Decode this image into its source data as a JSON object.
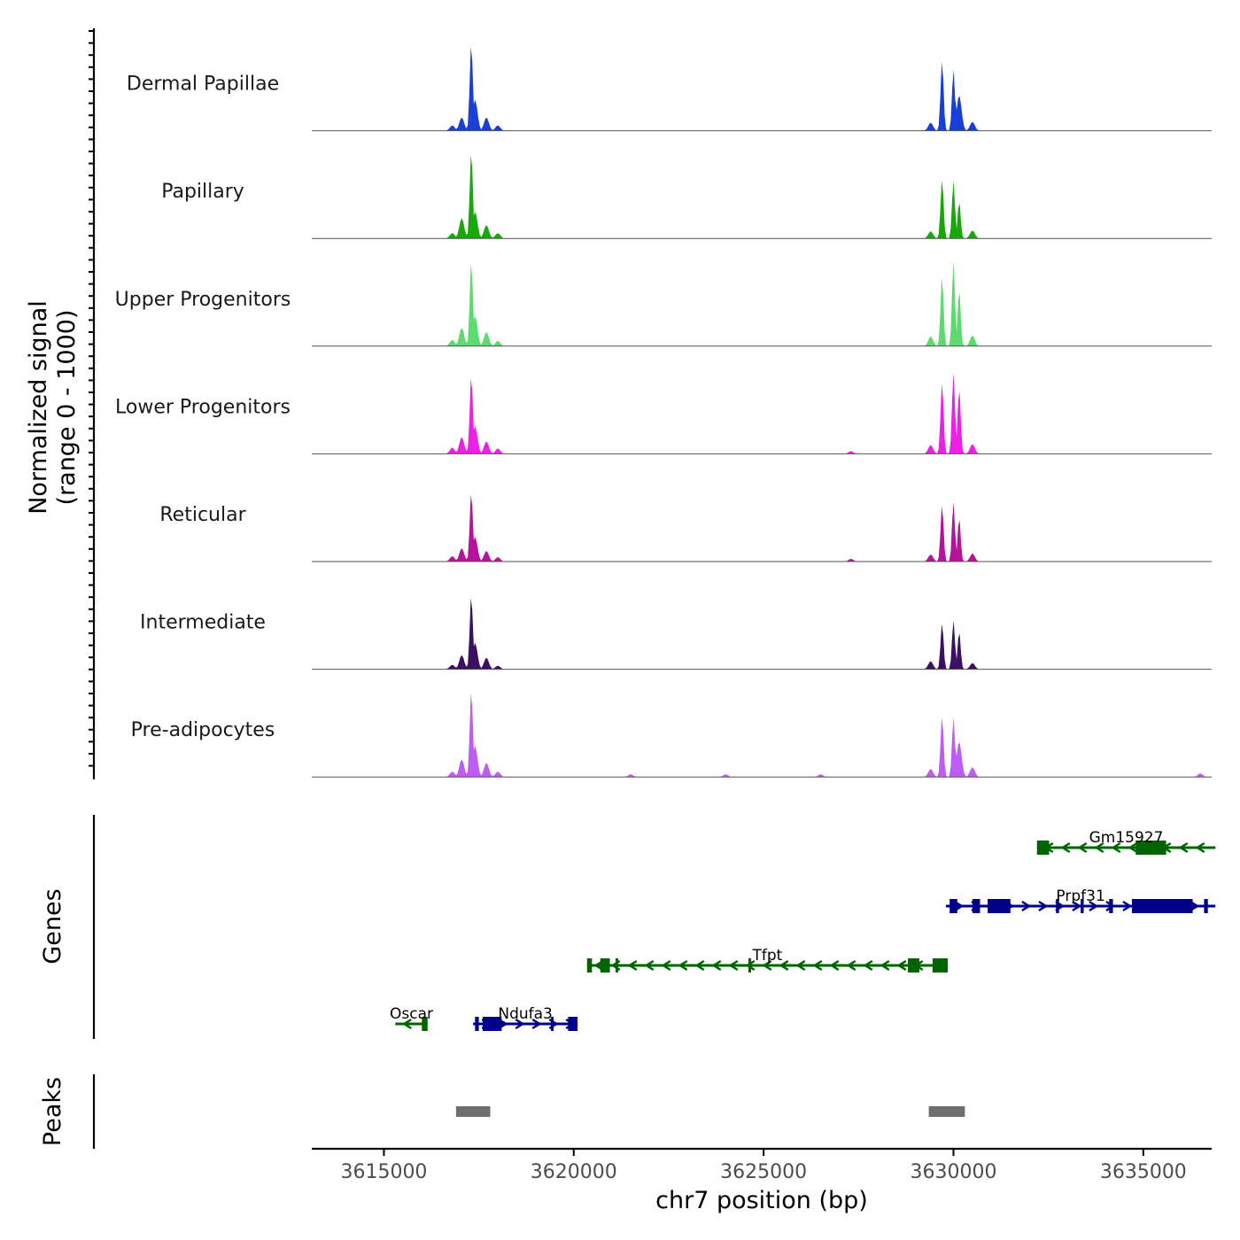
{
  "chart_data": {
    "type": "area",
    "chromosome": "chr7",
    "xlabel": "chr7 position (bp)",
    "xlim": [
      3613100,
      3636800
    ],
    "x_ticks": [
      3615000,
      3620000,
      3625000,
      3630000,
      3635000
    ],
    "x_tick_labels": [
      "3615000",
      "3620000",
      "3625000",
      "3630000",
      "3635000"
    ],
    "coverage": {
      "ylabel_line1": "Normalized signal",
      "ylabel_line2": "(range 0 - 1000)",
      "ylim": [
        0,
        1000
      ],
      "tracks": [
        {
          "name": "Dermal Papillae",
          "color": "#1a3fd9",
          "peaks": [
            [
              3616800,
              60
            ],
            [
              3617050,
              150
            ],
            [
              3617300,
              1000
            ],
            [
              3617400,
              350
            ],
            [
              3617700,
              150
            ],
            [
              3618000,
              60
            ],
            [
              3629400,
              90
            ],
            [
              3629700,
              800
            ],
            [
              3630000,
              700
            ],
            [
              3630150,
              400
            ],
            [
              3630500,
              100
            ]
          ]
        },
        {
          "name": "Papillary",
          "color": "#18a80a",
          "peaks": [
            [
              3616800,
              60
            ],
            [
              3617050,
              230
            ],
            [
              3617300,
              1000
            ],
            [
              3617400,
              300
            ],
            [
              3617700,
              150
            ],
            [
              3618000,
              60
            ],
            [
              3629400,
              80
            ],
            [
              3629700,
              680
            ],
            [
              3630000,
              660
            ],
            [
              3630150,
              420
            ],
            [
              3630500,
              90
            ]
          ]
        },
        {
          "name": "Upper Progenitors",
          "color": "#5ddb70",
          "peaks": [
            [
              3616800,
              70
            ],
            [
              3617050,
              210
            ],
            [
              3617300,
              980
            ],
            [
              3617400,
              340
            ],
            [
              3617700,
              160
            ],
            [
              3618000,
              60
            ],
            [
              3629400,
              110
            ],
            [
              3629700,
              800
            ],
            [
              3630000,
              970
            ],
            [
              3630150,
              640
            ],
            [
              3630500,
              120
            ]
          ]
        },
        {
          "name": "Lower Progenitors",
          "color": "#ee1fe6",
          "peaks": [
            [
              3616800,
              70
            ],
            [
              3617050,
              190
            ],
            [
              3617300,
              900
            ],
            [
              3617400,
              310
            ],
            [
              3617700,
              140
            ],
            [
              3618000,
              60
            ],
            [
              3627300,
              30
            ],
            [
              3629400,
              100
            ],
            [
              3629700,
              820
            ],
            [
              3630000,
              930
            ],
            [
              3630150,
              750
            ],
            [
              3630500,
              110
            ]
          ]
        },
        {
          "name": "Reticular",
          "color": "#b5139c",
          "peaks": [
            [
              3616800,
              60
            ],
            [
              3617050,
              150
            ],
            [
              3617300,
              800
            ],
            [
              3617400,
              280
            ],
            [
              3617700,
              120
            ],
            [
              3618000,
              50
            ],
            [
              3627300,
              30
            ],
            [
              3629400,
              80
            ],
            [
              3629700,
              650
            ],
            [
              3630000,
              680
            ],
            [
              3630150,
              500
            ],
            [
              3630500,
              90
            ]
          ]
        },
        {
          "name": "Intermediate",
          "color": "#3b0f62",
          "peaks": [
            [
              3616800,
              50
            ],
            [
              3617050,
              160
            ],
            [
              3617300,
              850
            ],
            [
              3617400,
              300
            ],
            [
              3617700,
              130
            ],
            [
              3618000,
              40
            ],
            [
              3629400,
              90
            ],
            [
              3629700,
              530
            ],
            [
              3630000,
              560
            ],
            [
              3630150,
              430
            ],
            [
              3630500,
              70
            ]
          ]
        },
        {
          "name": "Pre-adipocytes",
          "color": "#bf5cf5",
          "peaks": [
            [
              3616800,
              60
            ],
            [
              3617050,
              200
            ],
            [
              3617300,
              1000
            ],
            [
              3617400,
              350
            ],
            [
              3617700,
              160
            ],
            [
              3618000,
              60
            ],
            [
              3621500,
              30
            ],
            [
              3624000,
              30
            ],
            [
              3626500,
              30
            ],
            [
              3629400,
              90
            ],
            [
              3629700,
              700
            ],
            [
              3630000,
              680
            ],
            [
              3630150,
              400
            ],
            [
              3630500,
              110
            ],
            [
              3636500,
              40
            ]
          ]
        }
      ]
    },
    "genes": {
      "label": "Genes",
      "items": [
        {
          "name": "Gm15927",
          "strand": "-",
          "color": "#006400",
          "start": 3632200,
          "end": 3636900,
          "exons": [
            [
              3632200,
              3632520
            ],
            [
              3634800,
              3635600
            ]
          ]
        },
        {
          "name": "Prpf31",
          "strand": "+",
          "color": "#00008b",
          "start": 3629800,
          "end": 3636900,
          "exons": [
            [
              3629900,
              3630100
            ],
            [
              3630500,
              3630700
            ],
            [
              3630900,
              3631500
            ],
            [
              3632700,
              3632780
            ],
            [
              3633350,
              3633430
            ],
            [
              3634100,
              3634200
            ],
            [
              3634700,
              3636300
            ],
            [
              3636600,
              3636700
            ]
          ]
        },
        {
          "name": "Tfpt",
          "strand": "-",
          "color": "#006400",
          "start": 3620350,
          "end": 3629850,
          "exons": [
            [
              3620350,
              3620480
            ],
            [
              3620700,
              3620950
            ],
            [
              3621100,
              3621150
            ],
            [
              3624600,
              3624650
            ],
            [
              3628800,
              3629100
            ],
            [
              3629450,
              3629850
            ]
          ]
        },
        {
          "name": "Oscar",
          "strand": "-",
          "color": "#006400",
          "start": 3615300,
          "end": 3616150,
          "exons": [
            [
              3616000,
              3616150
            ]
          ]
        },
        {
          "name": "Ndufa3",
          "strand": "+",
          "color": "#00008b",
          "start": 3617350,
          "end": 3620100,
          "exons": [
            [
              3617400,
              3617500
            ],
            [
              3617600,
              3618100
            ],
            [
              3619400,
              3619450
            ],
            [
              3619850,
              3620100
            ]
          ]
        }
      ]
    },
    "peaks": {
      "label": "Peaks",
      "color": "#6e6e6e",
      "regions": [
        [
          3616900,
          3617800
        ],
        [
          3629350,
          3630300
        ]
      ]
    }
  }
}
